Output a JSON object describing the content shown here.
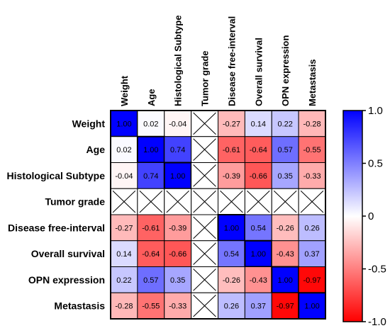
{
  "chart_data": {
    "type": "heatmap",
    "title": "",
    "variables": [
      "Weight",
      "Age",
      "Histological Subtype",
      "Tumor grade",
      "Disease free-interval",
      "Overall survival",
      "OPN expression",
      "Metastasis"
    ],
    "matrix": [
      [
        1.0,
        0.02,
        -0.04,
        null,
        -0.27,
        0.14,
        0.22,
        -0.28
      ],
      [
        0.02,
        1.0,
        0.74,
        null,
        -0.61,
        -0.64,
        0.57,
        -0.55
      ],
      [
        -0.04,
        0.74,
        1.0,
        null,
        -0.39,
        -0.66,
        0.35,
        -0.33
      ],
      [
        null,
        null,
        null,
        null,
        null,
        null,
        null,
        null
      ],
      [
        -0.27,
        -0.61,
        -0.39,
        null,
        1.0,
        0.54,
        -0.26,
        0.26
      ],
      [
        0.14,
        -0.64,
        -0.66,
        null,
        0.54,
        1.0,
        -0.43,
        0.37
      ],
      [
        0.22,
        0.57,
        0.35,
        null,
        -0.26,
        -0.43,
        1.0,
        -0.97
      ],
      [
        -0.28,
        -0.55,
        -0.33,
        null,
        0.26,
        0.37,
        -0.97,
        1.0
      ]
    ],
    "value_labels": [
      [
        "1.00",
        "0.02",
        "-0.04",
        "",
        "-0.27",
        "0.14",
        "0.22",
        "-0.28"
      ],
      [
        "0.02",
        "1.00",
        "0.74",
        "",
        "-0.61",
        "-0.64",
        "0.57",
        "-0.55"
      ],
      [
        "-0.04",
        "0.74",
        "1.00",
        "",
        "-0.39",
        "-0.66",
        "0.35",
        "-0.33"
      ],
      [
        "",
        "",
        "",
        "",
        "",
        "",
        "",
        ""
      ],
      [
        "-0.27",
        "-0.61",
        "-0.39",
        "",
        "1.00",
        "0.54",
        "-0.26",
        "0.26"
      ],
      [
        "0.14",
        "-0.64",
        "-0.66",
        "",
        "0.54",
        "1.00",
        "-0.43",
        "0.37"
      ],
      [
        "0.22",
        "0.57",
        "0.35",
        "",
        "-0.26",
        "-0.43",
        "1.00",
        "-0.97"
      ],
      [
        "-0.28",
        "-0.55",
        "-0.33",
        "",
        "0.26",
        "0.37",
        "-0.97",
        "1.00"
      ]
    ],
    "colorbar": {
      "range": [
        -1.0,
        1.0
      ],
      "ticks": [
        1.0,
        0.5,
        0,
        -0.5,
        -1.0
      ],
      "tick_labels": [
        "1.0",
        "0.5",
        "0",
        "-0.5",
        "-1.0"
      ]
    },
    "colors": {
      "positive": "#0000ff",
      "zero": "#ffffff",
      "negative": "#ff0000"
    }
  }
}
